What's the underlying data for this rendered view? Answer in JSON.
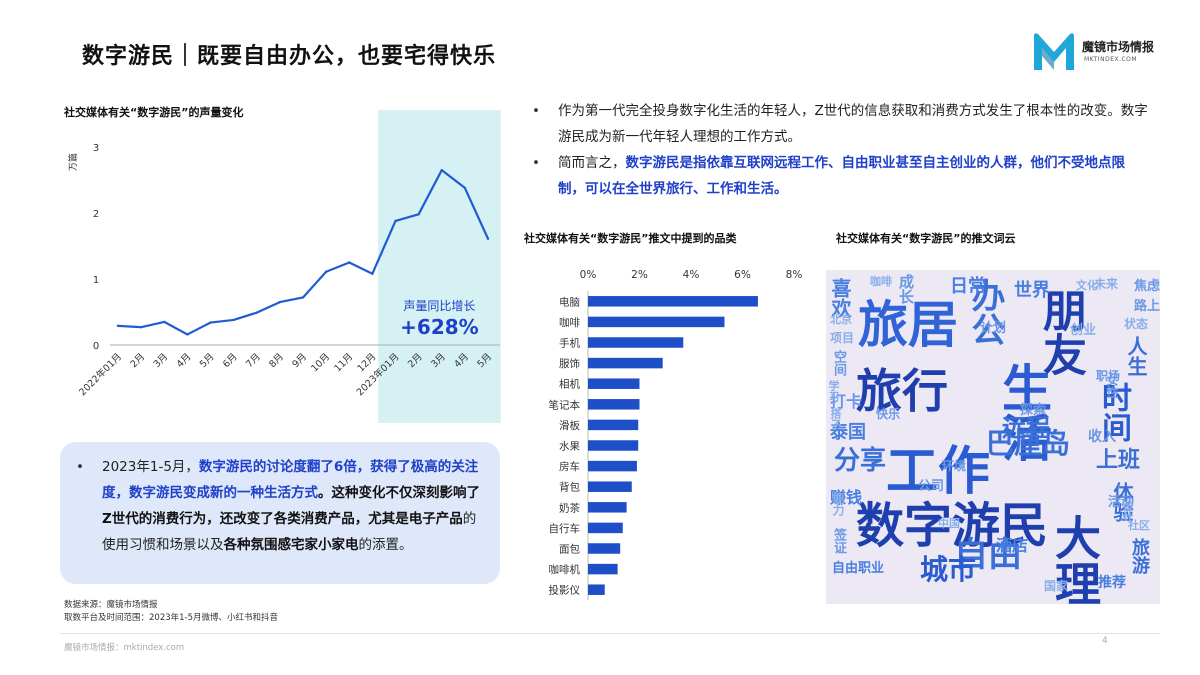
{
  "header": {
    "title": "数字游民｜既要自由办公，也要宅得快乐",
    "logo_name": "魔镜市场情报",
    "logo_url": "MKTINDEX.COM",
    "logo_color": "#1fa7d8"
  },
  "bullets": [
    {
      "text": "作为第一代完全投身数字化生活的年轻人，Z世代的信息获取和消费方式发生了根本性的改变。数字游民成为新一代年轻人理想的工作方式。"
    },
    {
      "prefix": "简而言之，",
      "highlight": "数字游民是指依靠互联网远程工作、自由职业甚至自主创业的人群，他们不受地点限制，可以在全世界旅行、工作和生活。"
    }
  ],
  "summary": {
    "p1": "2023年1-5月，",
    "h1": "数字游民的讨论度翻了6倍，获得了极高的关注度，数字游民变成新的一种生活方式",
    "p2": "。这种变化不仅深刻影响了Z世代的消费行为，还改变了各类消费产品，尤其是",
    "b1": "电子产品",
    "p3": "的使用习惯和场景以及",
    "b2": "各种氛围感宅家小家电",
    "p4": "的添置。"
  },
  "source": {
    "line1": "数据来源：魔镜市场情报",
    "line2": "取数平台及时间范围：2023年1-5月微博、小红书和抖音"
  },
  "footer": {
    "text": "魔镜市场情报：mktindex.com",
    "page": "4"
  },
  "chart_data": [
    {
      "type": "line",
      "title": "社交媒体有关“数字游民”的声量变化",
      "ylabel": "万篇",
      "ylim": [
        0,
        3
      ],
      "yticks": [
        0,
        1,
        2,
        3
      ],
      "categories": [
        "2022年01月",
        "2月",
        "3月",
        "4月",
        "5月",
        "6月",
        "7月",
        "8月",
        "9月",
        "10月",
        "11月",
        "12月",
        "2023年01月",
        "2月",
        "3月",
        "4月",
        "5月"
      ],
      "values": [
        0.29,
        0.27,
        0.35,
        0.16,
        0.34,
        0.38,
        0.49,
        0.65,
        0.72,
        1.11,
        1.25,
        1.08,
        1.88,
        1.98,
        2.65,
        2.38,
        1.61
      ],
      "highlight_range": [
        "2023年01月",
        "5月"
      ],
      "annotation_label": "声量同比增长",
      "annotation_value": "+628%",
      "line_color": "#1f5bd4",
      "highlight_color": "#d6f1f4"
    },
    {
      "type": "bar",
      "orientation": "horizontal",
      "title": "社交媒体有关“数字游民”推文中提到的品类",
      "xlim": [
        0,
        8
      ],
      "xticks": [
        "0%",
        "2%",
        "4%",
        "6%",
        "8%"
      ],
      "categories": [
        "电脑",
        "咖啡",
        "手机",
        "服饰",
        "相机",
        "笔记本",
        "滑板",
        "水果",
        "房车",
        "背包",
        "奶茶",
        "自行车",
        "面包",
        "咖啡机",
        "投影仪"
      ],
      "values": [
        6.6,
        5.3,
        3.7,
        2.9,
        2.0,
        2.0,
        1.95,
        1.95,
        1.9,
        1.7,
        1.5,
        1.35,
        1.25,
        1.15,
        0.65
      ],
      "bar_color": "#1f4fc8"
    },
    {
      "type": "wordcloud",
      "title": "社交媒体有关“数字游民”的推文词云",
      "words": [
        {
          "text": "数字游民",
          "color": "#1f3fae"
        },
        {
          "text": "工作",
          "color": "#2b5bd0"
        },
        {
          "text": "生活",
          "color": "#2b5bd0"
        },
        {
          "text": "旅居",
          "color": "#2f63d6"
        },
        {
          "text": "旅行",
          "color": "#1f3fae"
        },
        {
          "text": "朋友",
          "color": "#1f3fae"
        },
        {
          "text": "大理",
          "color": "#1f3fae"
        },
        {
          "text": "办公",
          "color": "#3b6fd8"
        },
        {
          "text": "巴厘岛",
          "color": "#3b6fd8"
        },
        {
          "text": "时间",
          "color": "#2b5bd0"
        },
        {
          "text": "自由",
          "color": "#3b6fd8"
        },
        {
          "text": "城市",
          "color": "#2b5bd0"
        },
        {
          "text": "远程",
          "color": "#3b6fd8"
        },
        {
          "text": "分享",
          "color": "#3b6fd8"
        },
        {
          "text": "喜欢",
          "color": "#4a7ee0"
        },
        {
          "text": "成长",
          "color": "#6a97e6"
        },
        {
          "text": "世界",
          "color": "#4a7ee0"
        },
        {
          "text": "人生",
          "color": "#3b6fd8"
        },
        {
          "text": "上班",
          "color": "#3b6fd8"
        },
        {
          "text": "体验",
          "color": "#3b6fd8"
        },
        {
          "text": "旅游",
          "color": "#3b6fd8"
        },
        {
          "text": "赚钱",
          "color": "#4a7ee0"
        },
        {
          "text": "公司",
          "color": "#6a97e6"
        },
        {
          "text": "酒店",
          "color": "#4a7ee0"
        },
        {
          "text": "日常",
          "color": "#4a7ee0"
        },
        {
          "text": "推荐",
          "color": "#4a7ee0"
        },
        {
          "text": "收入",
          "color": "#6a97e6"
        },
        {
          "text": "泰国",
          "color": "#4a7ee0"
        },
        {
          "text": "打卡",
          "color": "#6a97e6"
        },
        {
          "text": "空间",
          "color": "#6a97e6"
        },
        {
          "text": "职场",
          "color": "#6a97e6"
        },
        {
          "text": "女性",
          "color": "#6a97e6"
        },
        {
          "text": "焦虑",
          "color": "#6a97e6"
        },
        {
          "text": "路上",
          "color": "#6a97e6"
        },
        {
          "text": "自由职业",
          "color": "#4a7ee0"
        },
        {
          "text": "签证",
          "color": "#6a97e6"
        },
        {
          "text": "环境",
          "color": "#6a97e6"
        },
        {
          "text": "快乐",
          "color": "#6a97e6"
        },
        {
          "text": "探索",
          "color": "#6a97e6"
        },
        {
          "text": "计划",
          "color": "#6a97e6"
        },
        {
          "text": "活动",
          "color": "#6a97e6"
        },
        {
          "text": "创业",
          "color": "#8aaeea"
        },
        {
          "text": "状态",
          "color": "#8aaeea"
        },
        {
          "text": "未来",
          "color": "#8aaeea"
        },
        {
          "text": "能力",
          "color": "#8aaeea"
        },
        {
          "text": "国家",
          "color": "#8aaeea"
        },
        {
          "text": "设计",
          "color": "#8aaeea"
        },
        {
          "text": "项目",
          "color": "#8aaeea"
        },
        {
          "text": "学习",
          "color": "#8aaeea"
        },
        {
          "text": "中国",
          "color": "#8aaeea"
        },
        {
          "text": "社区",
          "color": "#8aaeea"
        },
        {
          "text": "咖啡",
          "color": "#8aaeea"
        },
        {
          "text": "搭子",
          "color": "#8aaeea"
        },
        {
          "text": "北京",
          "color": "#8aaeea"
        },
        {
          "text": "文化",
          "color": "#8aaeea"
        },
        {
          "text": "记录",
          "color": "#8aaeea"
        }
      ]
    }
  ]
}
